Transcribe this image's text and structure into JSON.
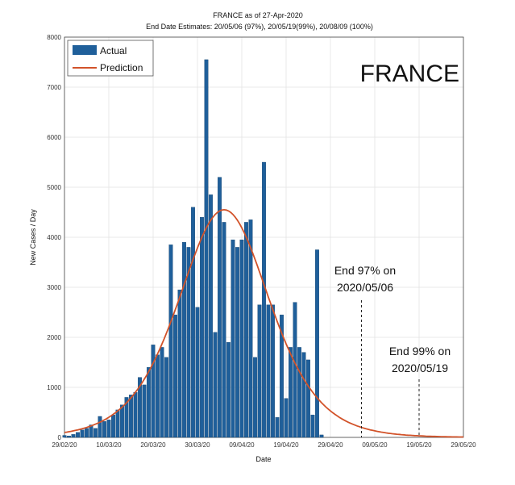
{
  "chart_data": {
    "type": "bar",
    "title": "FRANCE as of 27-Apr-2020",
    "subtitle": "End Date Estimates: 20/05/06 (97%), 20/05/19(99%), 20/08/09 (100%)",
    "panel_label": "FRANCE",
    "xlabel": "Date",
    "ylabel": "New Cases / Day",
    "ylim": [
      0,
      8000
    ],
    "yticks": [
      0,
      1000,
      2000,
      3000,
      4000,
      5000,
      6000,
      7000,
      8000
    ],
    "xlim": [
      "2020-02-29",
      "2020-05-29"
    ],
    "xtick_labels": [
      "29/02/20",
      "10/03/20",
      "20/03/20",
      "30/03/20",
      "09/04/20",
      "19/04/20",
      "29/04/20",
      "09/05/20",
      "19/05/20",
      "29/05/20"
    ],
    "xtick_dates": [
      "2020-02-29",
      "2020-03-10",
      "2020-03-20",
      "2020-03-30",
      "2020-04-09",
      "2020-04-19",
      "2020-04-29",
      "2020-05-09",
      "2020-05-19",
      "2020-05-29"
    ],
    "grid": true,
    "legend_position": "top-left",
    "colors": {
      "actual": "#1f5f9a",
      "prediction": "#d2532a"
    },
    "series": [
      {
        "name": "Actual",
        "kind": "bar",
        "x": [
          "2020-02-29",
          "2020-03-01",
          "2020-03-02",
          "2020-03-03",
          "2020-03-04",
          "2020-03-05",
          "2020-03-06",
          "2020-03-07",
          "2020-03-08",
          "2020-03-09",
          "2020-03-10",
          "2020-03-11",
          "2020-03-12",
          "2020-03-13",
          "2020-03-14",
          "2020-03-15",
          "2020-03-16",
          "2020-03-17",
          "2020-03-18",
          "2020-03-19",
          "2020-03-20",
          "2020-03-21",
          "2020-03-22",
          "2020-03-23",
          "2020-03-24",
          "2020-03-25",
          "2020-03-26",
          "2020-03-27",
          "2020-03-28",
          "2020-03-29",
          "2020-03-30",
          "2020-03-31",
          "2020-04-01",
          "2020-04-02",
          "2020-04-03",
          "2020-04-04",
          "2020-04-05",
          "2020-04-06",
          "2020-04-07",
          "2020-04-08",
          "2020-04-09",
          "2020-04-10",
          "2020-04-11",
          "2020-04-12",
          "2020-04-13",
          "2020-04-14",
          "2020-04-15",
          "2020-04-16",
          "2020-04-17",
          "2020-04-18",
          "2020-04-19",
          "2020-04-20",
          "2020-04-21",
          "2020-04-22",
          "2020-04-23",
          "2020-04-24",
          "2020-04-25",
          "2020-04-26",
          "2020-04-27"
        ],
        "values": [
          40,
          30,
          60,
          100,
          150,
          180,
          250,
          180,
          420,
          320,
          350,
          450,
          550,
          650,
          800,
          850,
          900,
          1200,
          1050,
          1400,
          1850,
          1650,
          1800,
          1600,
          3850,
          2450,
          2950,
          3900,
          3800,
          4600,
          2600,
          4400,
          7550,
          4850,
          2100,
          5200,
          4300,
          1900,
          3950,
          3800,
          3950,
          4300,
          4350,
          1600,
          2650,
          5500,
          2650,
          2650,
          400,
          2450,
          780,
          1800,
          2700,
          1800,
          1700,
          1550,
          450,
          3750,
          50
        ]
      },
      {
        "name": "Prediction",
        "kind": "line",
        "peak_date": "2020-04-05",
        "peak_value": 4550,
        "values_by_xtick": [
          120,
          360,
          1500,
          3900,
          4150,
          1800,
          640,
          280,
          140,
          60
        ]
      }
    ],
    "annotations": [
      {
        "text_line1": "End 97% on",
        "text_line2": "2020/05/06",
        "date": "2020-05-06"
      },
      {
        "text_line1": "End 99% on",
        "text_line2": "2020/05/19",
        "date": "2020-05-19"
      }
    ]
  }
}
